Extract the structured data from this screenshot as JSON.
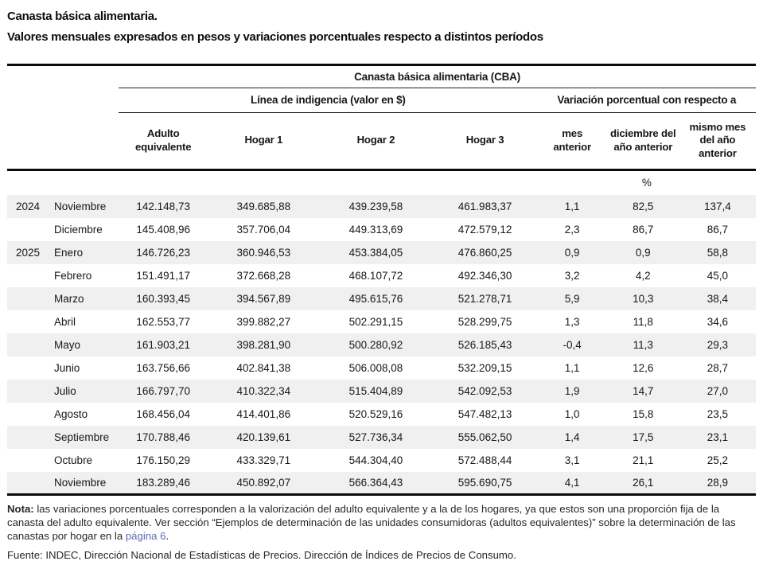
{
  "title": {
    "line1": "Canasta básica alimentaria.",
    "line2": "Valores mensuales expresados en pesos y variaciones porcentuales respecto a distintos períodos"
  },
  "table": {
    "group_header": "Canasta básica alimentaria (CBA)",
    "subgroup_left": "Línea de indigencia (valor en $)",
    "subgroup_right": "Variación porcentual con respecto a",
    "columns": [
      "Adulto\nequivalente",
      "Hogar 1",
      "Hogar 2",
      "Hogar 3",
      "mes\nanterior",
      "diciembre del\naño anterior",
      "mismo mes\ndel año\nanterior"
    ],
    "unit_label": "%",
    "rows": [
      {
        "year": "2024",
        "month": "Noviembre",
        "values": [
          "142.148,73",
          "349.685,88",
          "439.239,58",
          "461.983,37",
          "1,1",
          "82,5",
          "137,4"
        ]
      },
      {
        "year": "",
        "month": "Diciembre",
        "values": [
          "145.408,96",
          "357.706,04",
          "449.313,69",
          "472.579,12",
          "2,3",
          "86,7",
          "86,7"
        ]
      },
      {
        "year": "2025",
        "month": "Enero",
        "values": [
          "146.726,23",
          "360.946,53",
          "453.384,05",
          "476.860,25",
          "0,9",
          "0,9",
          "58,8"
        ]
      },
      {
        "year": "",
        "month": "Febrero",
        "values": [
          "151.491,17",
          "372.668,28",
          "468.107,72",
          "492.346,30",
          "3,2",
          "4,2",
          "45,0"
        ]
      },
      {
        "year": "",
        "month": "Marzo",
        "values": [
          "160.393,45",
          "394.567,89",
          "495.615,76",
          "521.278,71",
          "5,9",
          "10,3",
          "38,4"
        ]
      },
      {
        "year": "",
        "month": "Abril",
        "values": [
          "162.553,77",
          "399.882,27",
          "502.291,15",
          "528.299,75",
          "1,3",
          "11,8",
          "34,6"
        ]
      },
      {
        "year": "",
        "month": "Mayo",
        "values": [
          "161.903,21",
          "398.281,90",
          "500.280,92",
          "526.185,43",
          "-0,4",
          "11,3",
          "29,3"
        ]
      },
      {
        "year": "",
        "month": "Junio",
        "values": [
          "163.756,66",
          "402.841,38",
          "506.008,08",
          "532.209,15",
          "1,1",
          "12,6",
          "28,7"
        ]
      },
      {
        "year": "",
        "month": "Julio",
        "values": [
          "166.797,70",
          "410.322,34",
          "515.404,89",
          "542.092,53",
          "1,9",
          "14,7",
          "27,0"
        ]
      },
      {
        "year": "",
        "month": "Agosto",
        "values": [
          "168.456,04",
          "414.401,86",
          "520.529,16",
          "547.482,13",
          "1,0",
          "15,8",
          "23,5"
        ]
      },
      {
        "year": "",
        "month": "Septiembre",
        "values": [
          "170.788,46",
          "420.139,61",
          "527.736,34",
          "555.062,50",
          "1,4",
          "17,5",
          "23,1"
        ]
      },
      {
        "year": "",
        "month": "Octubre",
        "values": [
          "176.150,29",
          "433.329,71",
          "544.304,40",
          "572.488,44",
          "3,1",
          "21,1",
          "25,2"
        ]
      },
      {
        "year": "",
        "month": "Noviembre",
        "values": [
          "183.289,46",
          "450.892,07",
          "566.364,43",
          "595.690,75",
          "4,1",
          "26,1",
          "28,9"
        ]
      }
    ]
  },
  "footer": {
    "note_label": "Nota:",
    "note_before_link": " las variaciones porcentuales corresponden a la valorización del adulto equivalente y a la de los hogares, ya que estos son una proporción fija de la canasta del adulto equivalente. Ver sección “Ejemplos de determinación de las unidades consumidoras (adultos equivalentes)” sobre la determinación de las canastas por hogar en la ",
    "note_link": "página 6",
    "note_after_link": ".",
    "source_label": "Fuente:",
    "source_text": " INDEC, Dirección Nacional de Estadísticas de Precios. Dirección de Índices de Precios de Consumo."
  },
  "colors": {
    "stripe": "#f0f0f0",
    "rule": "#0a0a0a",
    "link": "#5d6cb4",
    "text": "#171717"
  }
}
